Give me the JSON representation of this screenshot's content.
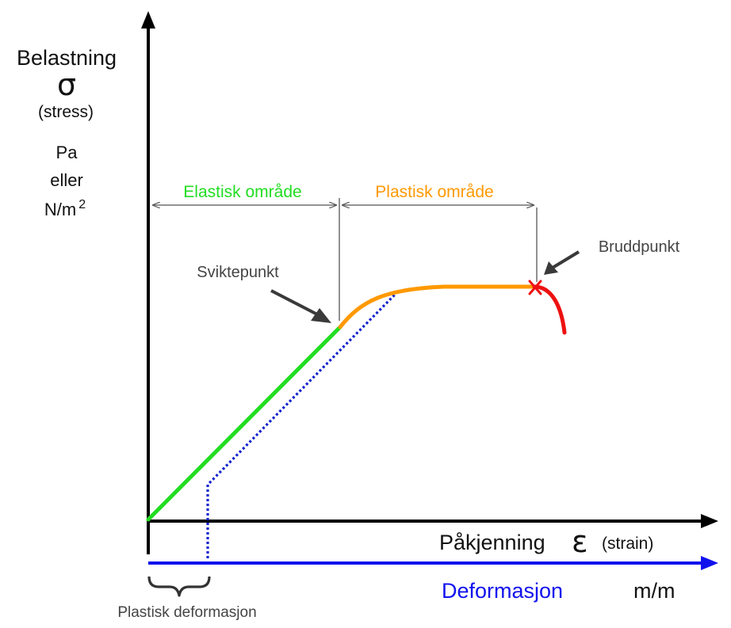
{
  "y_axis": {
    "title": "Belastning",
    "symbol": "σ",
    "subtitle": "(stress)",
    "unit_line1": "Pa",
    "unit_line2": "eller",
    "unit_line3": "N/m",
    "unit_exponent": "2"
  },
  "x_axis": {
    "title": "Påkjenning",
    "symbol": "ε",
    "subtitle": "(strain)",
    "unit": "m/m"
  },
  "deformation_axis": {
    "label": "Deformasjon"
  },
  "regions": {
    "elastic": "Elastisk område",
    "plastic": "Plastisk område"
  },
  "annotations": {
    "yield_point": "Sviktepunkt",
    "fracture_point": "Bruddpunkt",
    "plastic_deformation": "Plastisk deformasjon"
  },
  "colors": {
    "elastic": "#22dd22",
    "plastic": "#ff9900",
    "fracture": "#ee1111",
    "deformation": "#1111ee",
    "axis": "#000000",
    "arrow": "#3a3a3a"
  }
}
